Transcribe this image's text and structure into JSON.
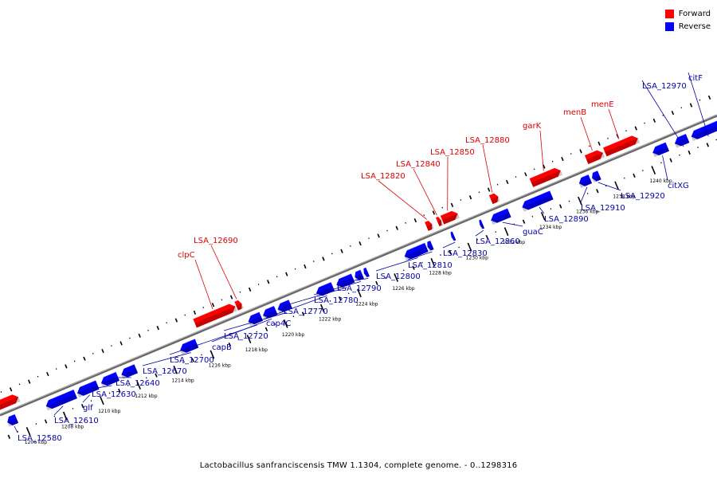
{
  "caption": "Lactobacillus sanfranciscensis TMW 1.1304, complete genome. - 0..1298316",
  "legend": [
    {
      "label": "Forward",
      "color": "#ff0000"
    },
    {
      "label": "Reverse",
      "color": "#0000ff"
    }
  ],
  "colors": {
    "forward": "#ff0000",
    "reverse": "#0000ff",
    "backbone": "#808080",
    "forward_label": "#dd0000",
    "reverse_label": "#0000aa"
  },
  "scale_ticks": [
    {
      "label": "1206 kbp",
      "kbp": 1206
    },
    {
      "label": "1208 kbp",
      "kbp": 1208
    },
    {
      "label": "1210 kbp",
      "kbp": 1210
    },
    {
      "label": "1212 kbp",
      "kbp": 1212
    },
    {
      "label": "1214 kbp",
      "kbp": 1214
    },
    {
      "label": "1216 kbp",
      "kbp": 1216
    },
    {
      "label": "1218 kbp",
      "kbp": 1218
    },
    {
      "label": "1220 kbp",
      "kbp": 1220
    },
    {
      "label": "1222 kbp",
      "kbp": 1222
    },
    {
      "label": "1224 kbp",
      "kbp": 1224
    },
    {
      "label": "1226 kbp",
      "kbp": 1226
    },
    {
      "label": "1228 kbp",
      "kbp": 1228
    },
    {
      "label": "1230 kbp",
      "kbp": 1230
    },
    {
      "label": "1232 kbp",
      "kbp": 1232
    },
    {
      "label": "1234 kbp",
      "kbp": 1234
    },
    {
      "label": "1236 kbp",
      "kbp": 1236
    },
    {
      "label": "1238 kbp",
      "kbp": 1238
    },
    {
      "label": "1240 kbp",
      "kbp": 1240
    }
  ],
  "genes": [
    {
      "name": "",
      "strand": "forward",
      "start": 1205.0,
      "end": 1206.2
    },
    {
      "name": "LSA_12580",
      "strand": "reverse",
      "start": 1205.2,
      "end": 1205.7
    },
    {
      "name": "LSA_12610",
      "strand": "reverse",
      "start": 1207.3,
      "end": 1208.9
    },
    {
      "name": "glf",
      "strand": "reverse",
      "start": 1209.0,
      "end": 1210.1
    },
    {
      "name": "LSA_12630",
      "strand": "reverse",
      "start": 1210.3,
      "end": 1211.2
    },
    {
      "name": "LSA_12640",
      "strand": "reverse",
      "start": 1211.4,
      "end": 1212.2
    },
    {
      "name": "LSA_12670",
      "strand": "reverse",
      "start": 1214.6,
      "end": 1215.5
    },
    {
      "name": "clpC",
      "strand": "forward",
      "start": 1215.8,
      "end": 1218.0
    },
    {
      "name": "LSA_12690",
      "strand": "forward",
      "start": 1218.05,
      "end": 1218.35
    },
    {
      "name": "LSA_12700",
      "strand": "reverse",
      "start": 1218.3,
      "end": 1219.0
    },
    {
      "name": "capB",
      "strand": "reverse",
      "start": 1219.1,
      "end": 1219.8
    },
    {
      "name": "LSA_12720",
      "strand": "reverse",
      "start": 1219.9,
      "end": 1220.6
    },
    {
      "name": "cap4C",
      "strand": "reverse",
      "start": 1222.0,
      "end": 1222.9
    },
    {
      "name": "LSA_12770",
      "strand": "reverse",
      "start": 1223.1,
      "end": 1224.0
    },
    {
      "name": "LSA_12780",
      "strand": "reverse",
      "start": 1224.1,
      "end": 1224.5
    },
    {
      "name": "LSA_12790",
      "strand": "reverse",
      "start": 1224.6,
      "end": 1224.8
    },
    {
      "name": "LSA_12800",
      "strand": "reverse",
      "start": 1226.8,
      "end": 1228.0
    },
    {
      "name": "LSA_12810",
      "strand": "reverse",
      "start": 1228.05,
      "end": 1228.3
    },
    {
      "name": "LSA_12820",
      "strand": "forward",
      "start": 1228.4,
      "end": 1228.7
    },
    {
      "name": "LSA_12840",
      "strand": "forward",
      "start": 1229.0,
      "end": 1229.2
    },
    {
      "name": "LSA_12850",
      "strand": "forward",
      "start": 1229.25,
      "end": 1230.1
    },
    {
      "name": "LSA_12830",
      "strand": "reverse",
      "start": 1229.35,
      "end": 1229.5
    },
    {
      "name": "LSA_12860",
      "strand": "reverse",
      "start": 1230.9,
      "end": 1231.05
    },
    {
      "name": "LSA_12880",
      "strand": "forward",
      "start": 1231.9,
      "end": 1232.3
    },
    {
      "name": "guaC",
      "strand": "reverse",
      "start": 1231.5,
      "end": 1232.5
    },
    {
      "name": "LSA_12890",
      "strand": "reverse",
      "start": 1233.2,
      "end": 1234.8
    },
    {
      "name": "garK",
      "strand": "forward",
      "start": 1234.1,
      "end": 1235.7
    },
    {
      "name": "LSA_12910",
      "strand": "reverse",
      "start": 1236.3,
      "end": 1236.9
    },
    {
      "name": "LSA_12920",
      "strand": "reverse",
      "start": 1237.0,
      "end": 1237.4
    },
    {
      "name": "menB",
      "strand": "forward",
      "start": 1237.1,
      "end": 1238.0
    },
    {
      "name": "menE",
      "strand": "forward",
      "start": 1238.1,
      "end": 1239.9
    },
    {
      "name": "citXG",
      "strand": "reverse",
      "start": 1240.3,
      "end": 1241.1
    },
    {
      "name": "LSA_12970",
      "strand": "reverse",
      "start": 1241.5,
      "end": 1242.2
    },
    {
      "name": "citF",
      "strand": "reverse",
      "start": 1242.4,
      "end": 1244.0
    }
  ]
}
